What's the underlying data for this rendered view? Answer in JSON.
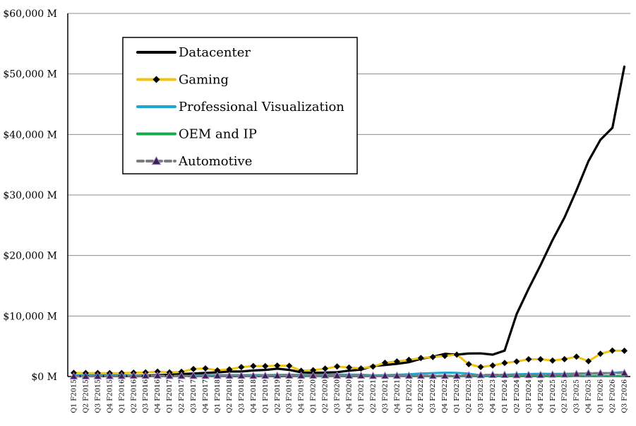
{
  "chart_data": {
    "type": "line",
    "title": "",
    "xlabel": "",
    "ylabel": "",
    "ylim": [
      0,
      60000
    ],
    "yticks": [
      0,
      10000,
      20000,
      30000,
      40000,
      50000,
      60000
    ],
    "ytick_labels": [
      "$0 M",
      "$10,000 M",
      "$20,000 M",
      "$30,000 M",
      "$40,000 M",
      "$50,000 M",
      "$60,000 M"
    ],
    "grid": "horizontal",
    "legend_position": "top-left",
    "categories": [
      "Q1 F2015",
      "Q2 F2015",
      "Q3 F2015",
      "Q4 F2015",
      "Q1 F2016",
      "Q2 F2016",
      "Q3 F2016",
      "Q4 F2016",
      "Q1 F2017",
      "Q2 F2017",
      "Q3 F2017",
      "Q4 F2017",
      "Q1 F2018",
      "Q2 F2018",
      "Q3 F2018",
      "Q4 F2018",
      "Q1 F2019",
      "Q2 F2019",
      "Q3 F2019",
      "Q4 F2019",
      "Q1 F2020",
      "Q2 F2020",
      "Q3 F2020",
      "Q4 F2020",
      "Q1 F2021",
      "Q2 F2021",
      "Q3 F2021",
      "Q4 F2021",
      "Q1 F2022",
      "Q2 F2022",
      "Q3 F2022",
      "Q4 F2022",
      "Q1 F2023",
      "Q2 F2023",
      "Q3 F2023",
      "Q4 F2023",
      "Q1 F2024",
      "Q2 F2024",
      "Q3 F2024",
      "Q4 F2024",
      "Q1 F2025",
      "Q2 F2025",
      "Q3 F2025",
      "Q4 F2025",
      "Q1 F2026",
      "Q2 F2026",
      "Q3 F2026"
    ],
    "series": [
      {
        "name": "Datacenter",
        "color": "#000000",
        "style": "solid",
        "marker": "none",
        "values": [
          57,
          61,
          74,
          82,
          79,
          110,
          143,
          240,
          296,
          409,
          501,
          606,
          701,
          830,
          830,
          1000,
          1100,
          1300,
          1100,
          700,
          634,
          655,
          726,
          968,
          1141,
          1752,
          1900,
          2100,
          2366,
          2936,
          3263,
          3750,
          3616,
          3806,
          3833,
          3616,
          4284,
          10323,
          14514,
          18404,
          22563,
          26272,
          30771,
          35580,
          39112,
          41096,
          51215
        ]
      },
      {
        "name": "Gaming",
        "color": "#f2c40f",
        "style": "solid",
        "marker": "diamond",
        "values": [
          606,
          580,
          586,
          564,
          577,
          644,
          680,
          810,
          687,
          781,
          1244,
          1348,
          1027,
          1186,
          1561,
          1739,
          1723,
          1805,
          1764,
          954,
          1055,
          1313,
          1659,
          1491,
          1339,
          1654,
          2271,
          2495,
          2760,
          3057,
          3221,
          3420,
          3620,
          2040,
          1574,
          1831,
          2240,
          2486,
          2856,
          2865,
          2647,
          2880,
          3279,
          2544,
          3763,
          4287,
          4265
        ]
      },
      {
        "name": "Professional Visualization",
        "color": "#1aa9d6",
        "style": "solid",
        "marker": "none",
        "values": [
          200,
          210,
          220,
          230,
          210,
          200,
          220,
          230,
          210,
          210,
          220,
          230,
          240,
          240,
          250,
          270,
          250,
          280,
          300,
          290,
          266,
          291,
          324,
          331,
          307,
          203,
          236,
          307,
          372,
          519,
          577,
          643,
          622,
          496,
          200,
          226,
          295,
          379,
          416,
          463,
          427,
          454,
          486,
          511,
          509,
          601,
          760
        ]
      },
      {
        "name": "OEM and IP",
        "color": "#17a84b",
        "style": "solid",
        "marker": "none",
        "values": [
          140,
          150,
          160,
          170,
          190,
          170,
          160,
          150,
          140,
          140,
          150,
          160,
          160,
          170,
          180,
          190,
          200,
          190,
          150,
          120,
          100,
          110,
          130,
          150,
          150,
          120,
          110,
          100,
          90,
          80,
          80,
          70,
          80,
          70,
          60,
          70,
          80,
          70,
          70,
          80,
          80,
          80,
          90,
          90,
          100,
          100,
          100
        ]
      },
      {
        "name": "Automotive",
        "color": "#7b7b82",
        "style": "dashed",
        "marker": "triangle",
        "values": [
          51,
          56,
          79,
          83,
          95,
          140,
          150,
          155,
          110,
          119,
          127,
          128,
          140,
          142,
          144,
          132,
          145,
          161,
          172,
          163,
          166,
          209,
          162,
          163,
          155,
          111,
          125,
          145,
          145,
          152,
          135,
          125,
          138,
          220,
          251,
          294,
          296,
          253,
          261,
          281,
          329,
          346,
          449,
          570,
          567,
          586,
          592
        ]
      }
    ]
  }
}
